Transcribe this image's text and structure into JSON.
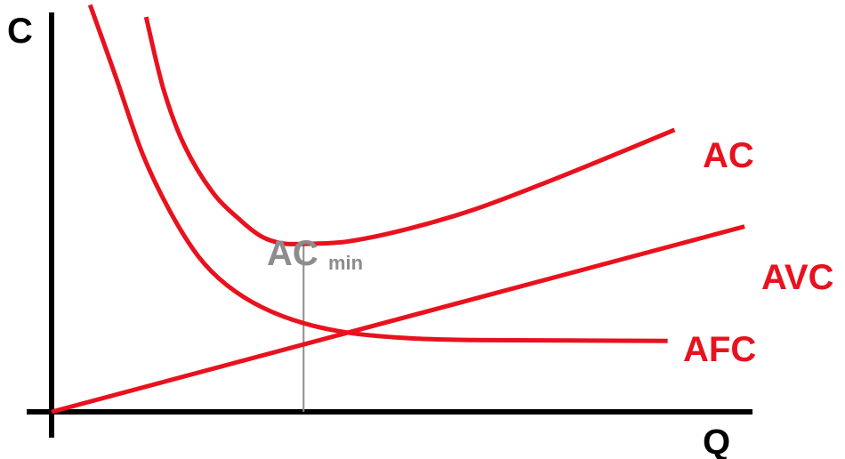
{
  "chart_data": {
    "type": "line",
    "title": "",
    "xlabel": "Q",
    "ylabel": "C",
    "xlim": [
      0,
      10
    ],
    "ylim": [
      0,
      10
    ],
    "grid": false,
    "legend": "none",
    "curve_color": "#e8121e",
    "axis_color": "#000000",
    "annotation_color": "#8c8c8c",
    "series": [
      {
        "name": "AC",
        "values": [
          [
            1.35,
            9.8
          ],
          [
            1.6,
            8.0
          ],
          [
            1.9,
            6.6
          ],
          [
            2.3,
            5.45
          ],
          [
            2.7,
            4.75
          ],
          [
            3.0,
            4.35
          ],
          [
            3.3,
            4.18
          ],
          [
            3.6,
            4.17
          ],
          [
            4.2,
            4.22
          ],
          [
            5.0,
            4.5
          ],
          [
            6.0,
            5.0
          ],
          [
            7.0,
            5.65
          ],
          [
            8.0,
            6.35
          ],
          [
            8.9,
            7.0
          ]
        ]
      },
      {
        "name": "AVC",
        "values": [
          [
            0,
            0
          ],
          [
            9.9,
            4.6
          ]
        ]
      },
      {
        "name": "AFC",
        "values": [
          [
            0.55,
            10.1
          ],
          [
            0.9,
            8.4
          ],
          [
            1.3,
            6.4
          ],
          [
            1.7,
            4.95
          ],
          [
            2.1,
            3.85
          ],
          [
            2.5,
            3.15
          ],
          [
            3.0,
            2.6
          ],
          [
            3.6,
            2.2
          ],
          [
            4.3,
            1.95
          ],
          [
            5.2,
            1.82
          ],
          [
            6.2,
            1.78
          ],
          [
            7.4,
            1.77
          ],
          [
            8.8,
            1.76
          ]
        ]
      }
    ],
    "annotations": [
      {
        "main": "AC",
        "sub": "min",
        "x": 3.6
      }
    ]
  }
}
